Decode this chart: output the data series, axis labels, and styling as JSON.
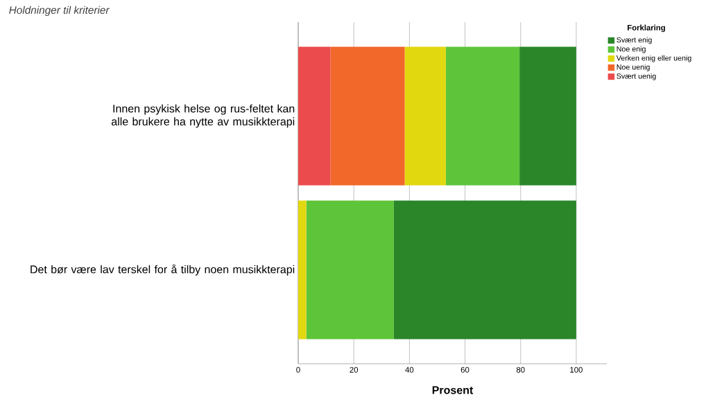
{
  "chart_data": {
    "type": "bar",
    "orientation": "horizontal",
    "stacked": true,
    "title": "Holdninger til kriterier",
    "xlabel": "Prosent",
    "legend_title": "Forklaring",
    "categories": [
      "Innen psykisk helse og rus-feltet kan alle brukere ha nytte av musikkterapi",
      "Det bør være lav terskel for å tilby noen musikkterapi"
    ],
    "series": [
      {
        "name": "Svært uenig",
        "color": "#eb4b4c",
        "values": [
          11.6,
          0
        ]
      },
      {
        "name": "Noe uenig",
        "color": "#f2672a",
        "values": [
          26.7,
          0
        ]
      },
      {
        "name": "Verken enig eller uenig",
        "color": "#e2d810",
        "values": [
          14.8,
          2.9
        ]
      },
      {
        "name": "Noe enig",
        "color": "#5ec43a",
        "values": [
          26.5,
          31.5
        ]
      },
      {
        "name": "Svært enig",
        "color": "#2a8629",
        "values": [
          20.4,
          65.6
        ]
      }
    ],
    "xlim": [
      0,
      111
    ],
    "xticks": [
      0,
      20,
      40,
      60,
      80,
      100
    ],
    "grid": "x",
    "legend": "top right"
  }
}
